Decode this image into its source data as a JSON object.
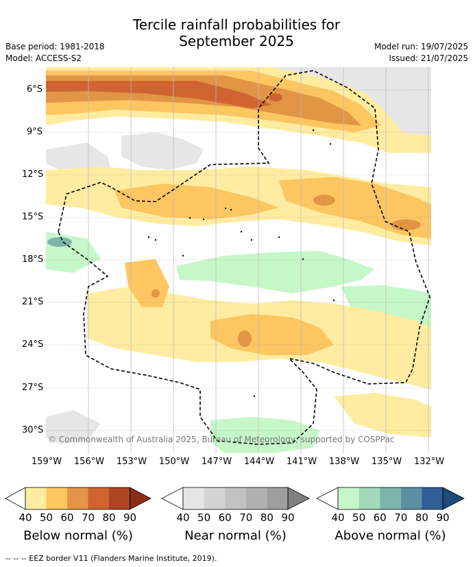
{
  "header": {
    "title_line1": "Tercile rainfall probabilities for",
    "title_line2": "September 2025",
    "base_period": "Base period: 1981-2018",
    "model": "Model: ACCESS-S2",
    "model_run": "Model run: 19/07/2025",
    "issued": "Issued: 21/07/2025"
  },
  "map": {
    "lat_labels": [
      "6°S",
      "9°S",
      "12°S",
      "15°S",
      "18°S",
      "21°S",
      "24°S",
      "27°S",
      "30°S"
    ],
    "lon_labels": [
      "159°W",
      "156°W",
      "153°W",
      "150°W",
      "147°W",
      "144°W",
      "141°W",
      "138°W",
      "135°W",
      "132°W"
    ],
    "copyright": "© Commonwealth of Australia 2025, Bureau of Meteorology, supported by COSPPac"
  },
  "colorbars": {
    "below": {
      "title": "Below normal (%)",
      "ticks": [
        "40",
        "50",
        "60",
        "70",
        "80",
        "90"
      ],
      "colors": [
        "#ffeca0",
        "#fdc660",
        "#e19545",
        "#cf6431",
        "#ad4525",
        "#8b2e16"
      ]
    },
    "near": {
      "title": "Near normal (%)",
      "ticks": [
        "40",
        "50",
        "60",
        "70",
        "80",
        "90"
      ],
      "colors": [
        "#e6e6e6",
        "#d4d4d4",
        "#c2c2c2",
        "#b0b0b0",
        "#9e9e9e",
        "#808080"
      ]
    },
    "above": {
      "title": "Above normal (%)",
      "ticks": [
        "40",
        "50",
        "60",
        "70",
        "80",
        "90"
      ],
      "colors": [
        "#c6f7c9",
        "#a4d8b8",
        "#7cb3ab",
        "#5a90a2",
        "#2f5f96",
        "#1d4a7a"
      ]
    }
  },
  "footer": "--  --  -- EEZ border V11 (Flanders Marine Institute, 2019)."
}
